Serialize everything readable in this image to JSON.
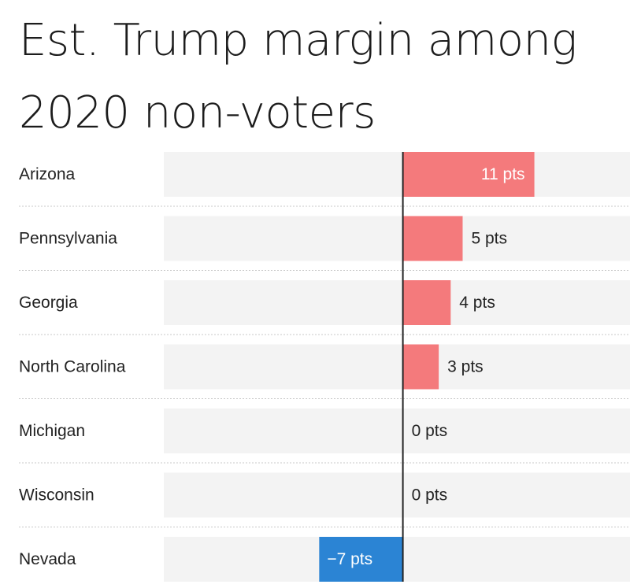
{
  "chart_data": {
    "type": "bar",
    "orientation": "horizontal",
    "title": "Est. Trump margin among 2020 non-voters",
    "categories": [
      "Arizona",
      "Pennsylvania",
      "Georgia",
      "North Carolina",
      "Michigan",
      "Wisconsin",
      "Nevada"
    ],
    "values": [
      11,
      5,
      4,
      3,
      0,
      0,
      -7
    ],
    "value_labels": [
      "11 pts",
      "5 pts",
      "4 pts",
      "3 pts",
      "0 pts",
      "0 pts",
      "−7 pts"
    ],
    "xlim": [
      -20,
      19
    ],
    "grid": false,
    "legend": "none",
    "colors": {
      "positive": "#f47a7c",
      "negative": "#2b84d4",
      "track": "#f3f3f3",
      "baseline": "#222222",
      "separator": "#c8c8c8",
      "label_inside": "#ffffff",
      "label_outside": "#222222"
    }
  }
}
